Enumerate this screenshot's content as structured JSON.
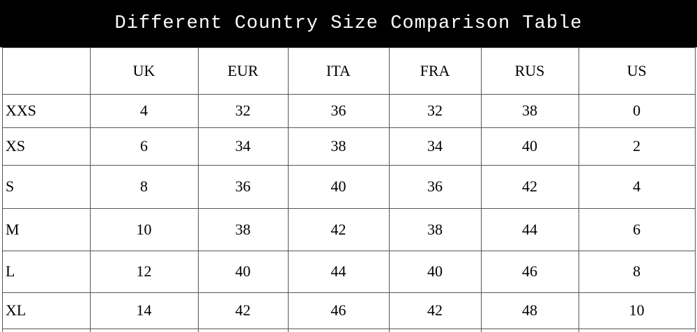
{
  "header": {
    "title": "Different Country Size Comparison Table"
  },
  "table": {
    "columns": [
      "UK",
      "EUR",
      "ITA",
      "FRA",
      "RUS",
      "US"
    ],
    "rows": [
      {
        "label": "XXS",
        "values": [
          4,
          32,
          36,
          32,
          38,
          0
        ]
      },
      {
        "label": "XS",
        "values": [
          6,
          34,
          38,
          34,
          40,
          2
        ]
      },
      {
        "label": "S",
        "values": [
          8,
          36,
          40,
          36,
          42,
          4
        ]
      },
      {
        "label": "M",
        "values": [
          10,
          38,
          42,
          38,
          44,
          6
        ]
      },
      {
        "label": "L",
        "values": [
          12,
          40,
          44,
          40,
          46,
          8
        ]
      },
      {
        "label": "XL",
        "values": [
          14,
          42,
          46,
          42,
          48,
          10
        ]
      }
    ]
  }
}
